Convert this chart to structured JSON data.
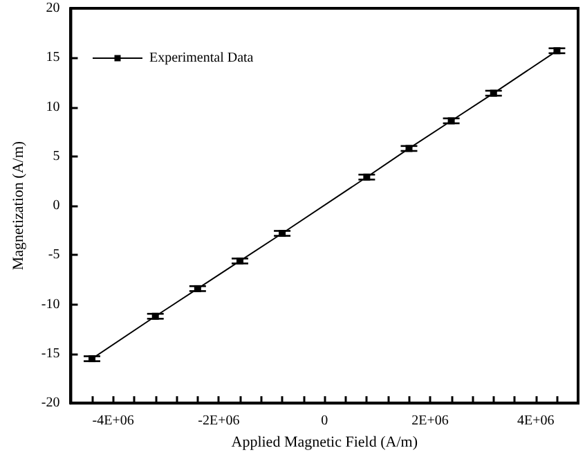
{
  "chart_data": {
    "type": "line",
    "xlabel": "Applied Magnetic Field (A/m)",
    "ylabel": "Magnetization (A/m)",
    "x": [
      -4400000,
      -3200000,
      -2400000,
      -1600000,
      -800000,
      800000,
      1600000,
      2400000,
      3200000,
      4400000
    ],
    "series": [
      {
        "name": "Experimental Data",
        "color": "#000000",
        "values": [
          -15.5,
          -11.2,
          -8.4,
          -5.6,
          -2.8,
          2.9,
          5.8,
          8.6,
          11.4,
          15.7
        ],
        "errors": [
          0.25,
          0.25,
          0.25,
          0.25,
          0.25,
          0.25,
          0.25,
          0.25,
          0.25,
          0.25
        ]
      }
    ],
    "xlim": [
      -4800000,
      4800000
    ],
    "xticks": [
      {
        "value": -4400000,
        "label": null
      },
      {
        "value": -4000000,
        "label": "-4E+06"
      },
      {
        "value": -3600000,
        "label": null
      },
      {
        "value": -3200000,
        "label": null
      },
      {
        "value": -2800000,
        "label": null
      },
      {
        "value": -2400000,
        "label": null
      },
      {
        "value": -2000000,
        "label": "-2E+06"
      },
      {
        "value": -1600000,
        "label": null
      },
      {
        "value": -1200000,
        "label": null
      },
      {
        "value": -800000,
        "label": null
      },
      {
        "value": -400000,
        "label": null
      },
      {
        "value": 0,
        "label": "0"
      },
      {
        "value": 400000,
        "label": null
      },
      {
        "value": 800000,
        "label": null
      },
      {
        "value": 1200000,
        "label": null
      },
      {
        "value": 1600000,
        "label": null
      },
      {
        "value": 2000000,
        "label": "2E+06"
      },
      {
        "value": 2400000,
        "label": null
      },
      {
        "value": 2800000,
        "label": null
      },
      {
        "value": 3200000,
        "label": null
      },
      {
        "value": 3600000,
        "label": null
      },
      {
        "value": 4000000,
        "label": "4E+06"
      },
      {
        "value": 4400000,
        "label": null
      }
    ],
    "ylim": [
      -20,
      20
    ],
    "yticks": [
      -20,
      -15,
      -10,
      -5,
      0,
      5,
      10,
      15,
      20
    ],
    "marker": "square",
    "line_style": "solid",
    "legend": "top left",
    "grid": false
  }
}
